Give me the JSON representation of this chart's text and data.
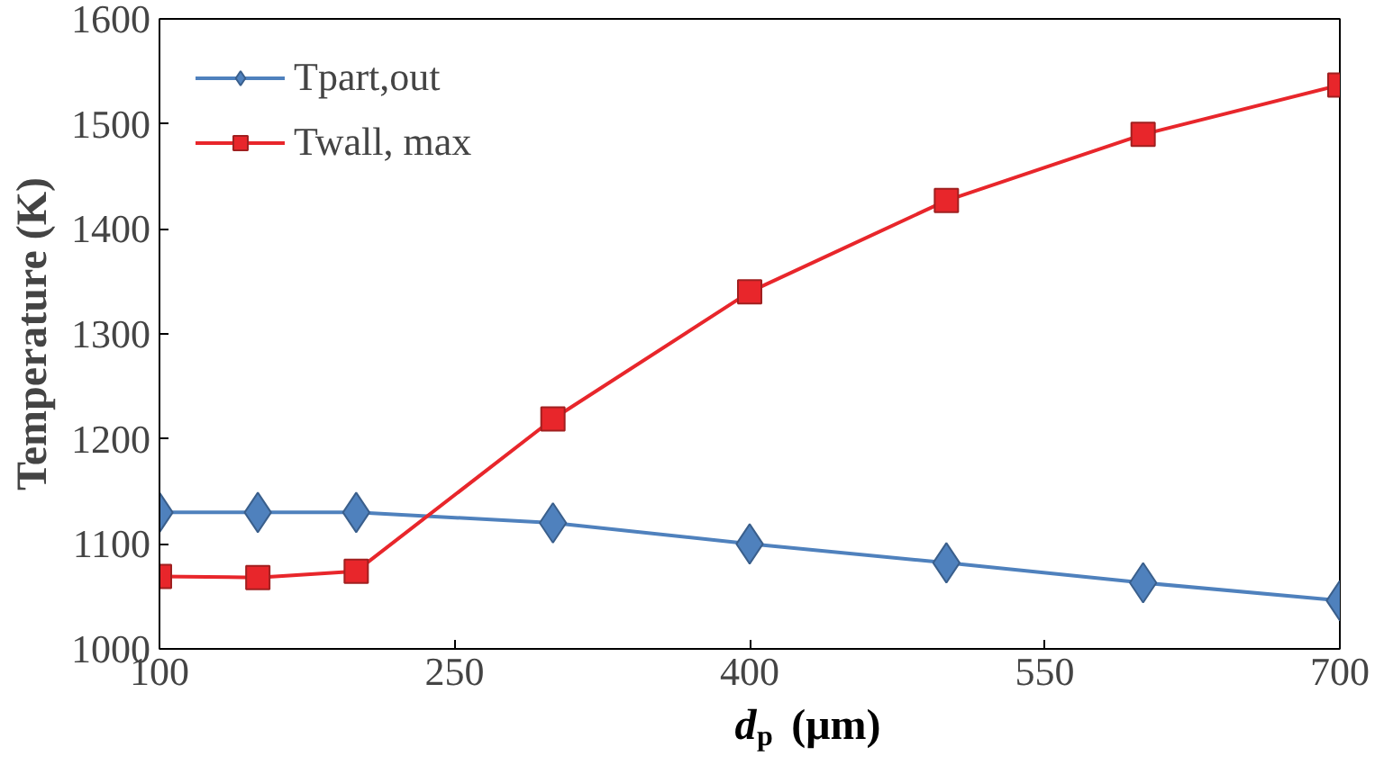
{
  "chart_data": {
    "type": "line",
    "xlabel": "d$_{p}$ (μm)",
    "ylabel": "Temperature (K)",
    "x": [
      100,
      150,
      200,
      300,
      400,
      500,
      600,
      700
    ],
    "series": [
      {
        "name": "Tpart,out",
        "color": "#4f81bd",
        "marker": "diamond",
        "values": [
          1130,
          1130,
          1130,
          1120,
          1100,
          1082,
          1063,
          1046
        ]
      },
      {
        "name": "Twall, max",
        "color": "#e8262b",
        "marker": "square",
        "values": [
          1069,
          1068,
          1074,
          1219,
          1340,
          1427,
          1490,
          1537
        ]
      }
    ],
    "xlim": [
      100,
      700
    ],
    "xticks": [
      100,
      250,
      400,
      550,
      700
    ],
    "ylim": [
      1000,
      1600
    ],
    "yticks": [
      1000,
      1100,
      1200,
      1300,
      1400,
      1500,
      1600
    ],
    "grid": false,
    "legend": "top left"
  }
}
